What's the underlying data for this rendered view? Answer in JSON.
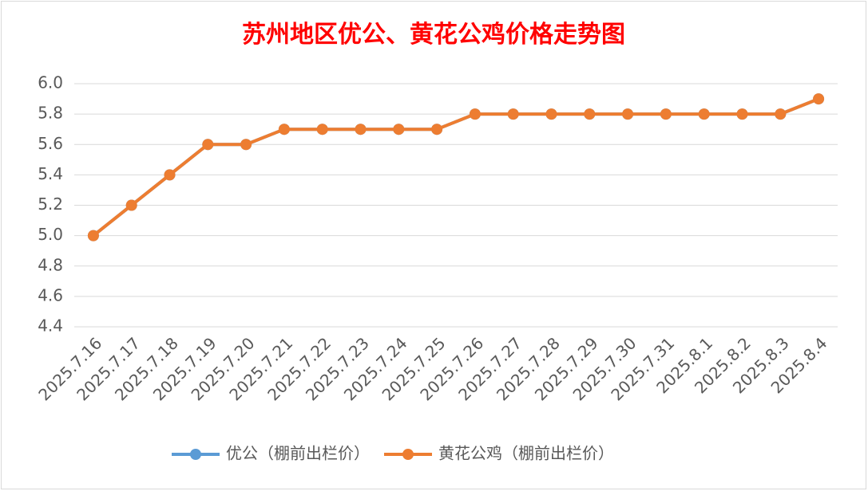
{
  "chart_data": {
    "type": "line",
    "title": "苏州地区优公、黄花公鸡价格走势图",
    "categories": [
      "2025.7.16",
      "2025.7.17",
      "2025.7.18",
      "2025.7.19",
      "2025.7.20",
      "2025.7.21",
      "2025.7.22",
      "2025.7.23",
      "2025.7.24",
      "2025.7.25",
      "2025.7.26",
      "2025.7.27",
      "2025.7.28",
      "2025.7.29",
      "2025.7.30",
      "2025.7.31",
      "2025.8.1",
      "2025.8.2",
      "2025.8.3",
      "2025.8.4"
    ],
    "series": [
      {
        "name": "优公（棚前出栏价）",
        "color": "#5b9bd5",
        "values": [
          5.0,
          5.2,
          5.4,
          5.6,
          5.6,
          5.7,
          5.7,
          5.7,
          5.7,
          5.7,
          5.8,
          5.8,
          5.8,
          5.8,
          5.8,
          5.8,
          5.8,
          5.8,
          5.8,
          5.9
        ]
      },
      {
        "name": "黄花公鸡（棚前出栏价）",
        "color": "#ed7d31",
        "values": [
          5.0,
          5.2,
          5.4,
          5.6,
          5.6,
          5.7,
          5.7,
          5.7,
          5.7,
          5.7,
          5.8,
          5.8,
          5.8,
          5.8,
          5.8,
          5.8,
          5.8,
          5.8,
          5.8,
          5.9
        ]
      }
    ],
    "ylim": [
      4.4,
      6.0
    ],
    "yticks": [
      4.4,
      4.6,
      4.8,
      {
        "value": 5.0,
        "label": "5.0"
      },
      5.2,
      5.4,
      5.6,
      5.8,
      {
        "value": 6.0,
        "label": "6.0"
      }
    ],
    "grid": true,
    "legend": "bottom"
  }
}
